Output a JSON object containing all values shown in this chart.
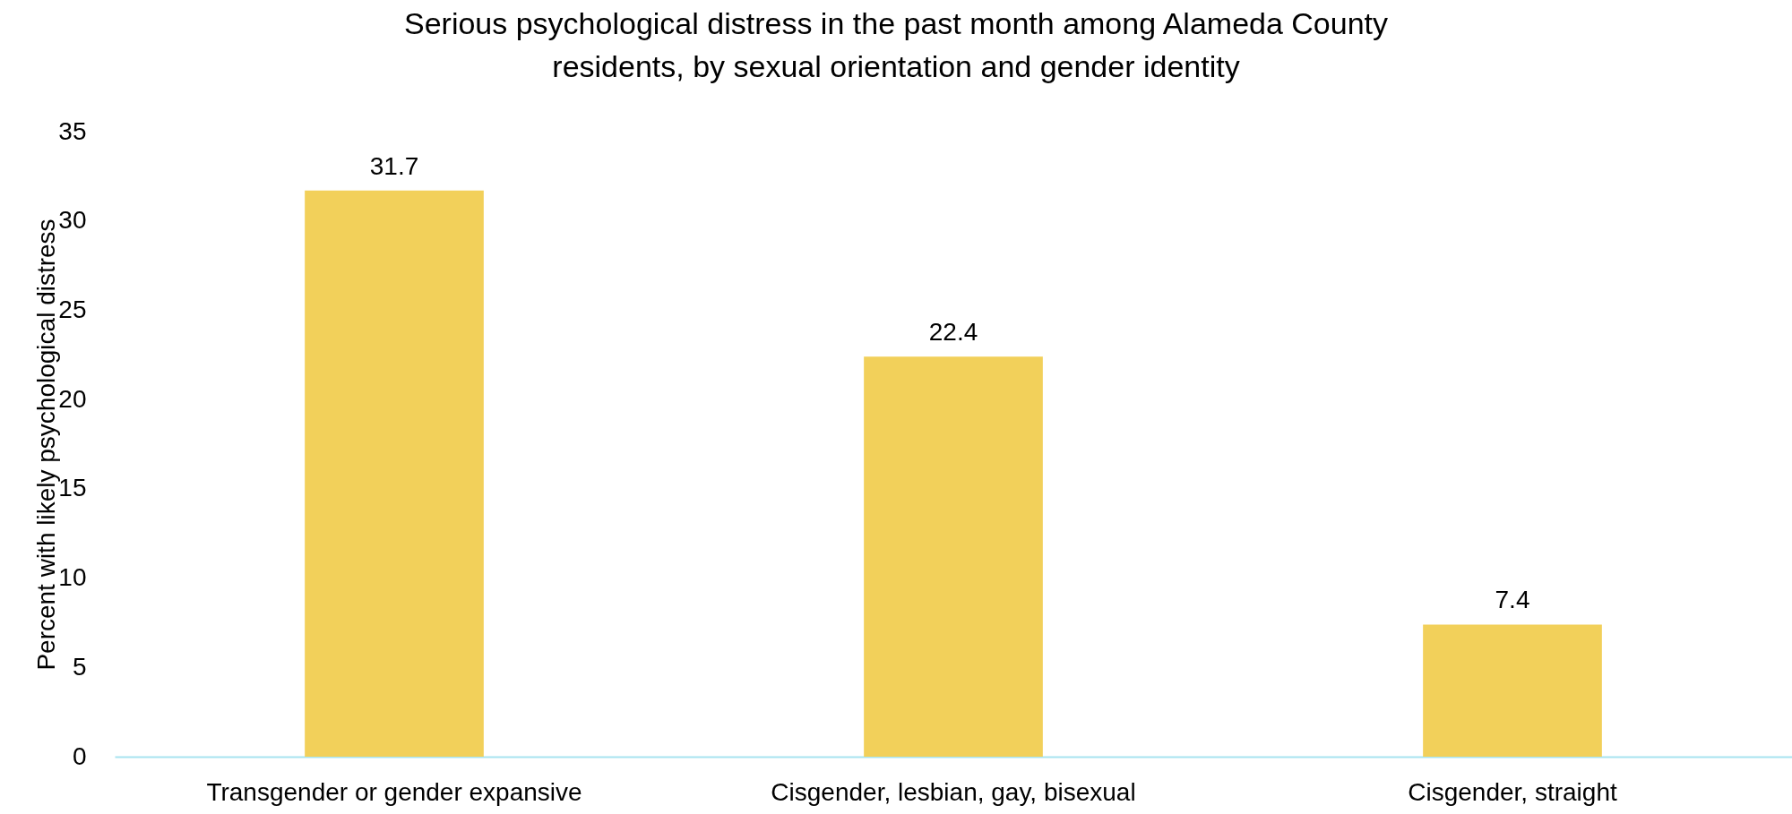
{
  "chart_data": {
    "type": "bar",
    "title": "Serious psychological distress in the past month among Alameda County residents, by sexual orientation and gender identity",
    "ylabel": "Percent with likely psychological distress",
    "categories": [
      "Transgender or gender expansive",
      "Cisgender, lesbian, gay, bisexual",
      "Cisgender, straight"
    ],
    "values": [
      31.7,
      22.4,
      7.4
    ],
    "color": "#f2d05a",
    "ylim": [
      0,
      35
    ],
    "yticks": [
      0,
      5,
      10,
      15,
      20,
      25,
      30,
      35
    ],
    "grid": false,
    "data_labels": true
  }
}
